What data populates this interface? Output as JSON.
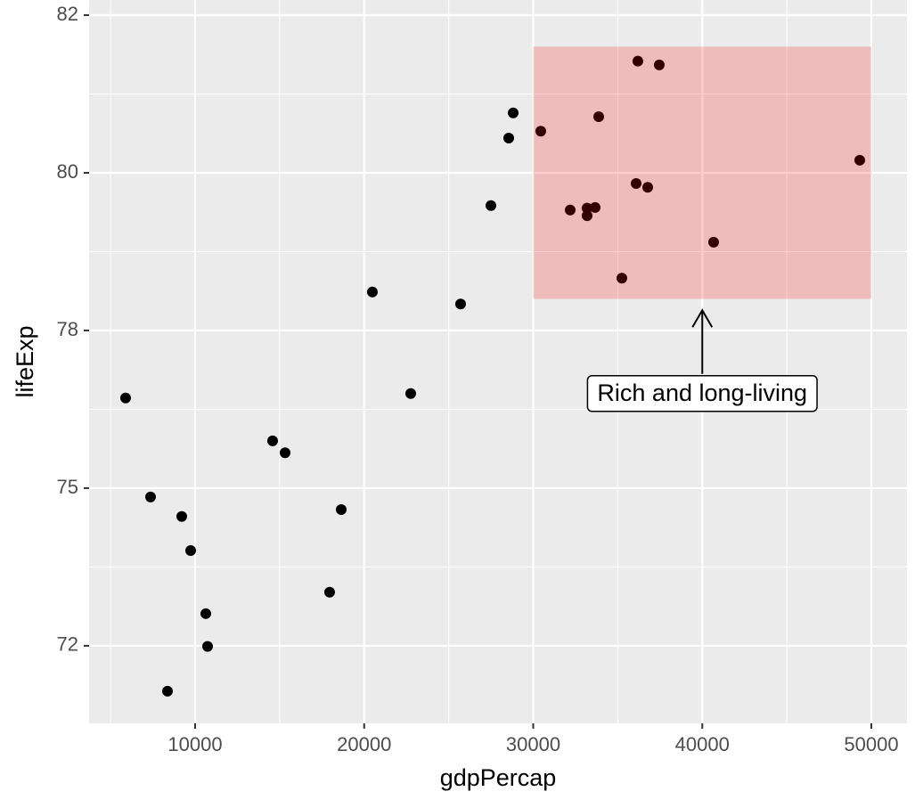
{
  "chart_data": {
    "type": "scatter",
    "x_label": "gdpPercap",
    "y_label": "lifeExp",
    "x": [
      5889,
      7365,
      9210,
      9737,
      10632,
      10738,
      8366,
      14585,
      15323,
      18643,
      17958,
      20487,
      22754,
      25705,
      27497,
      28551,
      28814,
      30448,
      32187,
      33188,
      33188,
      33663,
      33874,
      36087,
      36772,
      36190,
      37456,
      35244,
      40672,
      49315
    ],
    "values": [
      76.43,
      74.86,
      74.55,
      74.01,
      73.01,
      72.49,
      71.78,
      75.75,
      75.56,
      74.66,
      73.35,
      78.11,
      76.5,
      77.92,
      79.48,
      80.55,
      80.95,
      80.66,
      79.41,
      79.44,
      79.32,
      79.45,
      80.89,
      79.83,
      79.77,
      81.77,
      81.71,
      78.33,
      78.9,
      80.2
    ],
    "color": "#000000",
    "xlim": [
      3729,
      52108
    ],
    "ylim": [
      71.27,
      82.74
    ],
    "xticks": [
      10000,
      20000,
      30000,
      40000,
      50000
    ],
    "yticks": [
      {
        "value": 72.5,
        "label": "72"
      },
      75,
      {
        "value": 77.5,
        "label": "78"
      },
      80,
      {
        "value": 82.5,
        "label": "82"
      }
    ],
    "grid": true,
    "annotations": {
      "rect": {
        "xmin": 30000,
        "xmax": 50000,
        "ymin": 78,
        "ymax": 82,
        "color": "#ff0000"
      },
      "arrow": {
        "x": 40000,
        "y_start": 76.81,
        "y_end": 77.82
      },
      "label": {
        "text": "Rich and long-living",
        "x": 40000,
        "y": 76.5
      }
    }
  }
}
